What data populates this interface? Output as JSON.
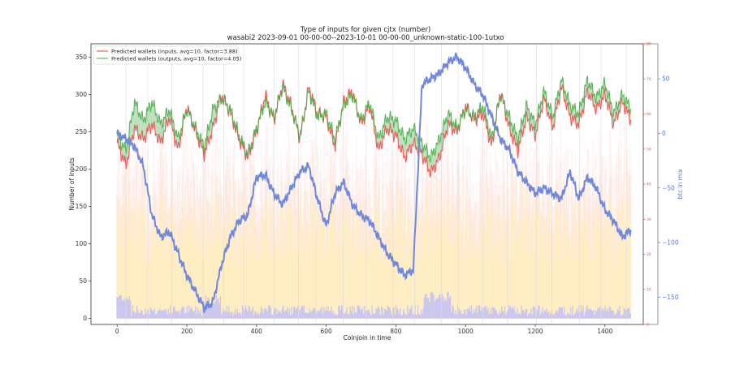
{
  "chart_data": {
    "type": "line",
    "title": "Type of inputs for given cjtx (number)",
    "subtitle": "wasabi2 2023-09-01 00-00-00--2023-10-01 00-00-00_unknown-static-100-1utxo",
    "xlabel": "Coinjoin in time",
    "ylabel": "Number of inputs",
    "y2label": "btc in mix",
    "xlim": [
      -75,
      1510
    ],
    "ylim": [
      -8,
      368
    ],
    "y_red_lim": [
      0,
      80
    ],
    "y_blue_lim": [
      -175,
      82
    ],
    "xticks": [
      "0",
      "200",
      "400",
      "600",
      "800",
      "1000",
      "1200",
      "1400"
    ],
    "xtick_values": [
      0,
      200,
      400,
      600,
      800,
      1000,
      1200,
      1400
    ],
    "yticks": [
      "0",
      "50",
      "100",
      "150",
      "200",
      "250",
      "300",
      "350"
    ],
    "ytick_values": [
      0,
      50,
      100,
      150,
      200,
      250,
      300,
      350
    ],
    "y_red_ticks": [
      "0",
      "10",
      "20",
      "30",
      "40",
      "50",
      "60",
      "70",
      "80"
    ],
    "y_red_tick_values": [
      0,
      10,
      20,
      30,
      40,
      50,
      60,
      70,
      80
    ],
    "y_blue_ticks": [
      "50",
      "0",
      "−50",
      "−100",
      "−150"
    ],
    "y_blue_tick_values": [
      50,
      0,
      -50,
      -100,
      -150
    ],
    "legend_position": "top-left",
    "x": [
      0,
      25,
      50,
      75,
      100,
      125,
      150,
      175,
      200,
      225,
      250,
      275,
      300,
      325,
      350,
      375,
      400,
      425,
      450,
      475,
      500,
      525,
      550,
      575,
      600,
      625,
      650,
      675,
      700,
      725,
      750,
      775,
      800,
      825,
      850,
      875,
      900,
      925,
      950,
      975,
      1000,
      1025,
      1050,
      1075,
      1100,
      1125,
      1150,
      1175,
      1200,
      1225,
      1250,
      1275,
      1300,
      1325,
      1350,
      1375,
      1400,
      1425,
      1450,
      1475
    ],
    "series": [
      {
        "name": "Predicted wallets (inputs, avg=10, factor=3.88)",
        "color": "#ee4444",
        "values": [
          235,
          205,
          255,
          240,
          260,
          235,
          270,
          225,
          285,
          250,
          220,
          255,
          300,
          275,
          240,
          215,
          250,
          300,
          265,
          315,
          285,
          240,
          310,
          275,
          270,
          230,
          290,
          305,
          260,
          285,
          225,
          255,
          245,
          215,
          235,
          220,
          195,
          215,
          260,
          250,
          285,
          265,
          275,
          230,
          305,
          255,
          225,
          270,
          245,
          295,
          255,
          310,
          270,
          260,
          305,
          280,
          300,
          260,
          290,
          265
        ]
      },
      {
        "name": "Predicted wallets (outputs, avg=10, factor=4.05)",
        "color": "#44aa44",
        "values": [
          245,
          225,
          290,
          265,
          290,
          260,
          280,
          240,
          280,
          255,
          230,
          280,
          295,
          280,
          245,
          220,
          255,
          290,
          270,
          310,
          280,
          245,
          305,
          270,
          275,
          240,
          285,
          300,
          265,
          290,
          240,
          270,
          265,
          240,
          255,
          235,
          215,
          240,
          275,
          255,
          280,
          270,
          285,
          240,
          300,
          270,
          240,
          285,
          260,
          305,
          270,
          320,
          285,
          275,
          320,
          295,
          315,
          275,
          300,
          280
        ]
      },
      {
        "name": "btc in mix",
        "color": "#6f88dd",
        "axis": "right",
        "values": [
          0,
          -5,
          -12,
          -30,
          -75,
          -95,
          -90,
          -110,
          -130,
          -145,
          -160,
          -155,
          -120,
          -95,
          -80,
          -75,
          -40,
          -38,
          -55,
          -65,
          -50,
          -35,
          -30,
          -60,
          -85,
          -55,
          -45,
          -65,
          -75,
          -80,
          -95,
          -110,
          -120,
          -130,
          -125,
          45,
          50,
          55,
          65,
          70,
          60,
          45,
          35,
          15,
          -5,
          -15,
          -35,
          -45,
          -55,
          -50,
          -55,
          -60,
          -35,
          -60,
          -40,
          -50,
          -70,
          -80,
          -95,
          -88
        ]
      }
    ],
    "background_bars": {
      "colors": [
        "#fff2b0",
        "#ffe2c8",
        "#fde0e0",
        "#b8b8ff"
      ],
      "stacked": true
    },
    "legend": [
      {
        "label": "Predicted wallets (inputs, avg=10, factor=3.88)",
        "color": "#ee4444"
      },
      {
        "label": "Predicted wallets (outputs, avg=10, factor=4.05)",
        "color": "#44aa44"
      }
    ]
  }
}
